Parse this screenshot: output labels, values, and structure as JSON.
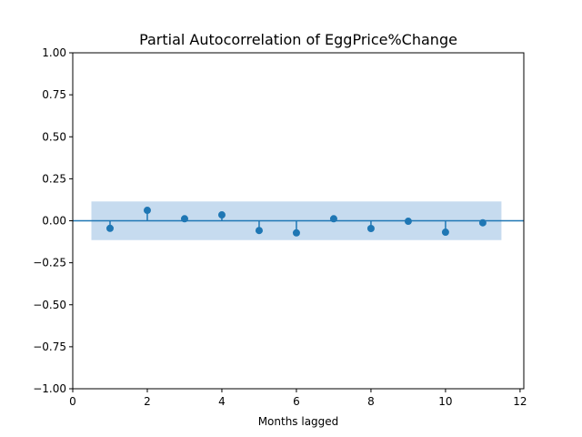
{
  "chart_data": {
    "type": "stem",
    "title": "Partial Autocorrelation of EggPrice%Change",
    "xlabel": "Months lagged",
    "ylabel": "",
    "xlim": [
      0,
      12.1
    ],
    "ylim": [
      -1.0,
      1.0
    ],
    "xticks": [
      0,
      2,
      4,
      6,
      8,
      10,
      12
    ],
    "yticks": [
      -1.0,
      -0.75,
      -0.5,
      -0.25,
      0.0,
      0.25,
      0.5,
      0.75,
      1.0
    ],
    "ytick_labels": [
      "−1.00",
      "−0.75",
      "−0.50",
      "−0.25",
      "0.00",
      "0.25",
      "0.50",
      "0.75",
      "1.00"
    ],
    "grid": false,
    "x": [
      1,
      2,
      3,
      4,
      5,
      6,
      7,
      8,
      9,
      10,
      11
    ],
    "values": [
      -0.045,
      0.062,
      0.012,
      0.035,
      -0.058,
      -0.072,
      0.012,
      -0.046,
      -0.003,
      -0.068,
      -0.012
    ],
    "confidence_band": {
      "x_range": [
        0.5,
        11.5
      ],
      "lower": -0.115,
      "upper": 0.115
    },
    "colors": {
      "marker": "#1f77b4",
      "band": "#c6dbef",
      "zero_line": "#1f77b4"
    }
  }
}
